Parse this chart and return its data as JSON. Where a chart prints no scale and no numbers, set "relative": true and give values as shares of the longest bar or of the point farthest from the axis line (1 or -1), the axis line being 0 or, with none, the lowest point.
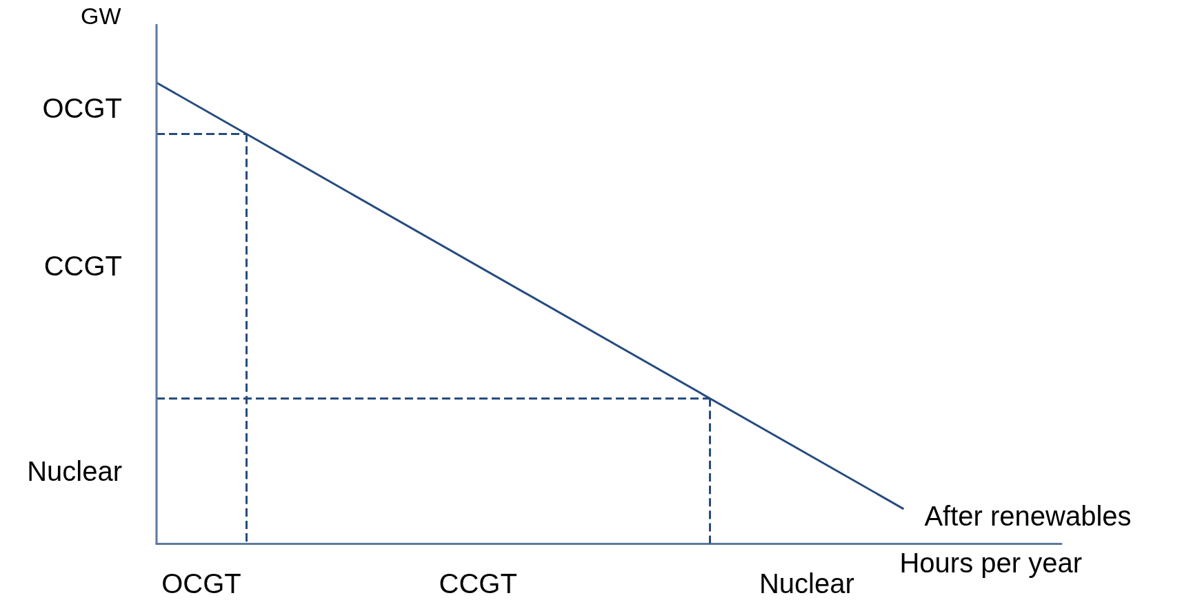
{
  "chart_data": {
    "type": "line",
    "ylabel": "GW",
    "xlabel": "Hours per year",
    "categories": [
      null,
      null
    ],
    "values": [
      1,
      0.075
    ],
    "color": "#264b7f",
    "relative": true,
    "line_style": "solid",
    "marker": "none",
    "grid": false,
    "ref_lines": [
      {
        "axis": "y",
        "value": 0.889,
        "line_style": "dashed"
      },
      {
        "axis": "y",
        "value": 0.315,
        "line_style": "dashed"
      }
    ],
    "annotations": [
      "OCGT",
      "CCGT",
      "Nuclear",
      "OCGT",
      "CCGT",
      "Nuclear",
      "After renewables"
    ]
  }
}
